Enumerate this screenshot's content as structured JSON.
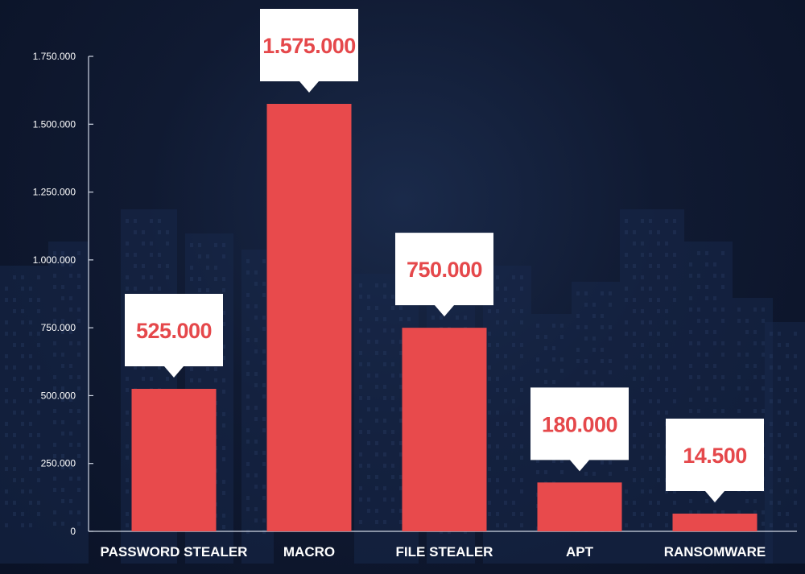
{
  "chart_data": {
    "type": "bar",
    "categories": [
      "PASSWORD STEALER",
      "MACRO",
      "FILE STEALER",
      "APT",
      "RANSOMWARE"
    ],
    "values": [
      525000,
      1575000,
      750000,
      180000,
      14500
    ],
    "value_labels": [
      "525.000",
      "1.575.000",
      "750.000",
      "180.000",
      "14.500"
    ],
    "y_ticks": [
      0,
      250000,
      500000,
      750000,
      1000000,
      1250000,
      1500000,
      1750000
    ],
    "y_tick_labels": [
      "0",
      "250.000",
      "500.000",
      "750.000",
      "1.000.000",
      "1.250.000",
      "1.500.000",
      "1.750.000"
    ],
    "ylim": [
      0,
      1750000
    ],
    "grid": false,
    "legend": "none",
    "title": "",
    "xlabel": "",
    "ylabel": "",
    "colors": {
      "bar": "#e84a4c",
      "label_text": "#e5484b",
      "callout": "#ffffff",
      "axis": "#cfd6e4",
      "background": "#0f1a33"
    }
  }
}
